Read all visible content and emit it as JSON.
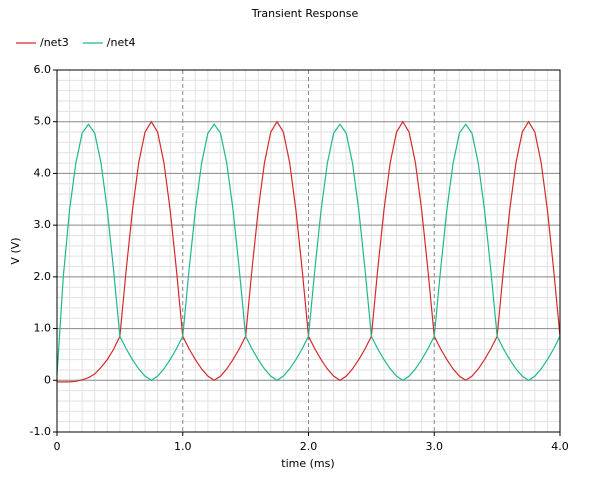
{
  "chart_data": {
    "type": "line",
    "title": "Transient Response",
    "x_label": "time (ms)",
    "y_label": "V (V)",
    "x": [
      0,
      0.05,
      0.1,
      0.15,
      0.2,
      0.25,
      0.3,
      0.35,
      0.4,
      0.45,
      0.5,
      0.55,
      0.6,
      0.65,
      0.7,
      0.75,
      0.8,
      0.85,
      0.9,
      0.95,
      1.0,
      1.05,
      1.1,
      1.15,
      1.2,
      1.25,
      1.3,
      1.35,
      1.4,
      1.45,
      1.5,
      1.55,
      1.6,
      1.65,
      1.7,
      1.75,
      1.8,
      1.85,
      1.9,
      1.95,
      2.0,
      2.05,
      2.1,
      2.15,
      2.2,
      2.25,
      2.3,
      2.35,
      2.4,
      2.45,
      2.5,
      2.55,
      2.6,
      2.65,
      2.7,
      2.75,
      2.8,
      2.85,
      2.9,
      2.95,
      3.0,
      3.05,
      3.1,
      3.15,
      3.2,
      3.25,
      3.3,
      3.35,
      3.4,
      3.45,
      3.5,
      3.55,
      3.6,
      3.65,
      3.7,
      3.75,
      3.8,
      3.85,
      3.9,
      3.95,
      4.0
    ],
    "series": [
      {
        "name": "/net3",
        "color": "#d42a2a",
        "values": [
          -0.03,
          -0.03,
          -0.03,
          -0.02,
          0.01,
          0.05,
          0.12,
          0.25,
          0.4,
          0.6,
          0.85,
          2.13,
          3.29,
          4.21,
          4.8,
          5.0,
          4.8,
          4.21,
          3.29,
          2.13,
          0.85,
          0.61,
          0.4,
          0.22,
          0.08,
          0.0,
          0.08,
          0.22,
          0.4,
          0.61,
          0.85,
          2.13,
          3.29,
          4.21,
          4.8,
          5.0,
          4.8,
          4.21,
          3.29,
          2.13,
          0.85,
          0.61,
          0.4,
          0.22,
          0.08,
          0.0,
          0.08,
          0.22,
          0.4,
          0.61,
          0.85,
          2.13,
          3.29,
          4.21,
          4.8,
          5.0,
          4.8,
          4.21,
          3.29,
          2.13,
          0.85,
          0.61,
          0.4,
          0.22,
          0.08,
          0.0,
          0.08,
          0.22,
          0.4,
          0.61,
          0.85,
          2.13,
          3.29,
          4.21,
          4.8,
          5.0,
          4.8,
          4.21,
          3.29,
          2.13,
          0.85
        ]
      },
      {
        "name": "/net4",
        "color": "#1fb88e",
        "values": [
          0.1,
          2.0,
          3.3,
          4.2,
          4.78,
          4.95,
          4.78,
          4.2,
          3.29,
          2.13,
          0.85,
          0.61,
          0.4,
          0.22,
          0.08,
          0.0,
          0.08,
          0.22,
          0.4,
          0.61,
          0.85,
          2.13,
          3.29,
          4.2,
          4.78,
          4.95,
          4.78,
          4.2,
          3.29,
          2.13,
          0.85,
          0.61,
          0.4,
          0.22,
          0.08,
          0.0,
          0.08,
          0.22,
          0.4,
          0.61,
          0.85,
          2.13,
          3.29,
          4.2,
          4.78,
          4.95,
          4.78,
          4.2,
          3.29,
          2.13,
          0.85,
          0.61,
          0.4,
          0.22,
          0.08,
          0.0,
          0.08,
          0.22,
          0.4,
          0.61,
          0.85,
          2.13,
          3.29,
          4.2,
          4.78,
          4.95,
          4.78,
          4.2,
          3.29,
          2.13,
          0.85,
          0.61,
          0.4,
          0.22,
          0.08,
          0.0,
          0.08,
          0.22,
          0.4,
          0.61,
          0.85
        ]
      }
    ],
    "xlim": [
      0,
      4.0
    ],
    "xticks": [
      0,
      {
        "value": 1.0,
        "label": "1.0"
      },
      {
        "value": 2.0,
        "label": "2.0"
      },
      {
        "value": 3.0,
        "label": "3.0"
      },
      {
        "value": 4.0,
        "label": "4.0"
      }
    ],
    "ylim": [
      -1.0,
      6.0
    ],
    "yticks": [
      {
        "value": -1.0,
        "label": "-1.0"
      },
      0,
      {
        "value": 1.0,
        "label": "1.0"
      },
      {
        "value": 2.0,
        "label": "2.0"
      },
      {
        "value": 3.0,
        "label": "3.0"
      },
      {
        "value": 4.0,
        "label": "4.0"
      },
      {
        "value": 5.0,
        "label": "5.0"
      },
      {
        "value": 6.0,
        "label": "6.0"
      }
    ],
    "grid": true,
    "legend": "top-left"
  }
}
